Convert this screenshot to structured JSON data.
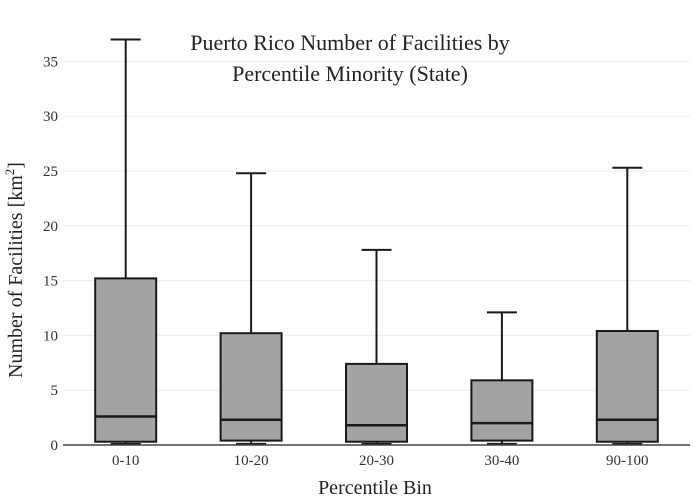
{
  "chart_data": {
    "type": "box",
    "title_lines": [
      "Puerto Rico Number of Facilities by",
      "Percentile Minority (State)"
    ],
    "xlabel": "Percentile Bin",
    "ylabel": "Number of Facilities  [km",
    "ylabel_superscript": "2",
    "ylabel_close": "]",
    "ylim": [
      0,
      37.5
    ],
    "yticks": [
      0,
      5,
      10,
      15,
      20,
      25,
      30,
      35
    ],
    "grid": true,
    "box_color": "#a3a3a3",
    "categories": [
      "0-10",
      "10-20",
      "20-30",
      "30-40",
      "90-100"
    ],
    "boxes": [
      {
        "label": "0-10",
        "min": 0.1,
        "q1": 0.3,
        "median": 2.6,
        "q3": 15.2,
        "max": 37.0
      },
      {
        "label": "10-20",
        "min": 0.1,
        "q1": 0.4,
        "median": 2.3,
        "q3": 10.2,
        "max": 24.8
      },
      {
        "label": "20-30",
        "min": 0.1,
        "q1": 0.3,
        "median": 1.8,
        "q3": 7.4,
        "max": 17.8
      },
      {
        "label": "30-40",
        "min": 0.1,
        "q1": 0.4,
        "median": 2.0,
        "q3": 5.9,
        "max": 12.1
      },
      {
        "label": "90-100",
        "min": 0.1,
        "q1": 0.3,
        "median": 2.3,
        "q3": 10.4,
        "max": 25.3
      }
    ]
  }
}
